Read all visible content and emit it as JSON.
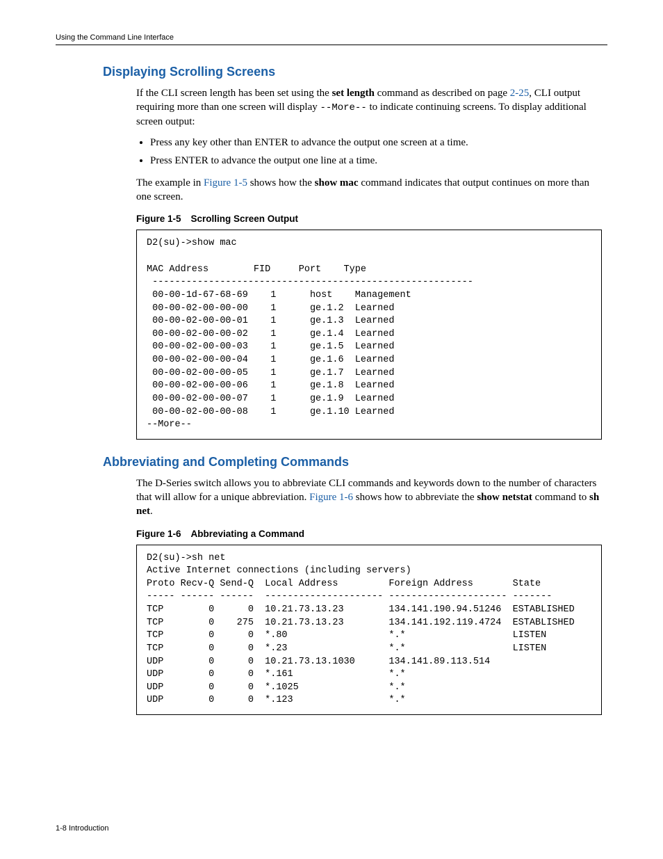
{
  "running_head": "Using the Command Line Interface",
  "footer": "1-8   Introduction",
  "section1": {
    "title": "Displaying Scrolling Screens",
    "p1_a": "If the CLI screen length has been set using the ",
    "p1_bold1": "set length",
    "p1_b": " command as described on page ",
    "p1_xref": "2-25",
    "p1_c": ", CLI output requiring more than one screen will display ",
    "p1_mono": "--More--",
    "p1_d": "  to indicate continuing screens. To display additional screen output:",
    "bullet1": "Press any key other than ENTER to advance the output one screen at a time.",
    "bullet2": "Press ENTER to advance the output one line at a time.",
    "p2_a": "The example in ",
    "p2_xref": "Figure 1-5",
    "p2_b": " shows how the ",
    "p2_bold": "show mac",
    "p2_c": " command indicates that output continues on more than one screen.",
    "fig_label": "Figure 1-5",
    "fig_title": "Scrolling Screen Output",
    "terminal": "D2(su)->show mac\n\nMAC Address        FID     Port    Type\n ---------------------------------------------------------\n 00-00-1d-67-68-69    1      host    Management\n 00-00-02-00-00-00    1      ge.1.2  Learned\n 00-00-02-00-00-01    1      ge.1.3  Learned\n 00-00-02-00-00-02    1      ge.1.4  Learned\n 00-00-02-00-00-03    1      ge.1.5  Learned\n 00-00-02-00-00-04    1      ge.1.6  Learned\n 00-00-02-00-00-05    1      ge.1.7  Learned\n 00-00-02-00-00-06    1      ge.1.8  Learned\n 00-00-02-00-00-07    1      ge.1.9  Learned\n 00-00-02-00-00-08    1      ge.1.10 Learned\n--More--"
  },
  "section2": {
    "title": "Abbreviating and Completing Commands",
    "p1_a": "The D-Series switch allows you to abbreviate CLI commands and keywords down to the number of characters that will allow for a unique abbreviation. ",
    "p1_xref": "Figure 1-6",
    "p1_b": " shows how to abbreviate the ",
    "p1_bold1": "show netstat",
    "p1_c": " command to ",
    "p1_bold2": "sh net",
    "p1_d": ".",
    "fig_label": "Figure 1-6",
    "fig_title": "Abbreviating a Command",
    "terminal": "D2(su)->sh net\nActive Internet connections (including servers)\nProto Recv-Q Send-Q  Local Address         Foreign Address       State\n----- ------ ------  --------------------- --------------------- -------\nTCP        0      0  10.21.73.13.23        134.141.190.94.51246  ESTABLISHED\nTCP        0    275  10.21.73.13.23        134.141.192.119.4724  ESTABLISHED\nTCP        0      0  *.80                  *.*                   LISTEN\nTCP        0      0  *.23                  *.*                   LISTEN\nUDP        0      0  10.21.73.13.1030      134.141.89.113.514\nUDP        0      0  *.161                 *.*\nUDP        0      0  *.1025                *.*\nUDP        0      0  *.123                 *.*"
  }
}
